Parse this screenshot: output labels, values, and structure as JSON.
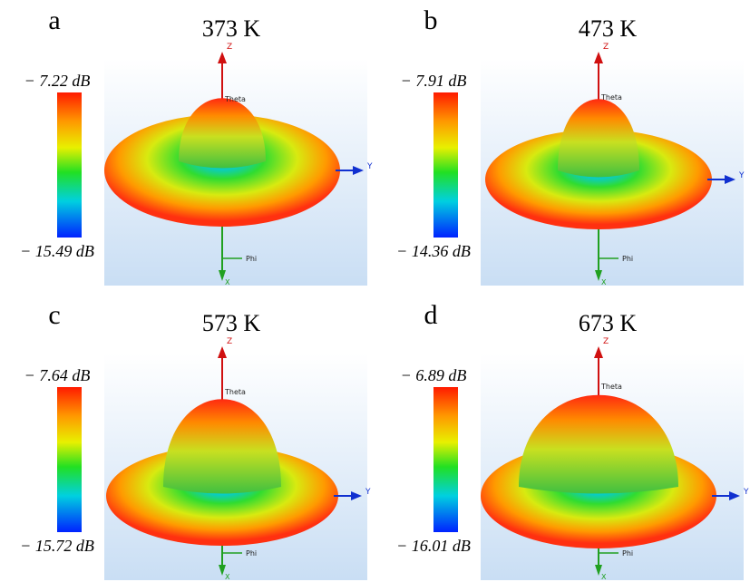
{
  "panels": [
    {
      "letter": "a",
      "title": "373 K",
      "max_label": "− 7.22 dB",
      "min_label": "− 15.49 dB"
    },
    {
      "letter": "b",
      "title": "473 K",
      "max_label": "− 7.91 dB",
      "min_label": "− 14.36 dB"
    },
    {
      "letter": "c",
      "title": "573 K",
      "max_label": "− 7.64 dB",
      "min_label": "− 15.72 dB"
    },
    {
      "letter": "d",
      "title": "673 K",
      "max_label": "− 6.89 dB",
      "min_label": "− 16.01 dB"
    }
  ],
  "axis_labels": {
    "z": "Z",
    "y": "Y",
    "x": "X",
    "theta": "Theta",
    "phi": "Phi"
  }
}
